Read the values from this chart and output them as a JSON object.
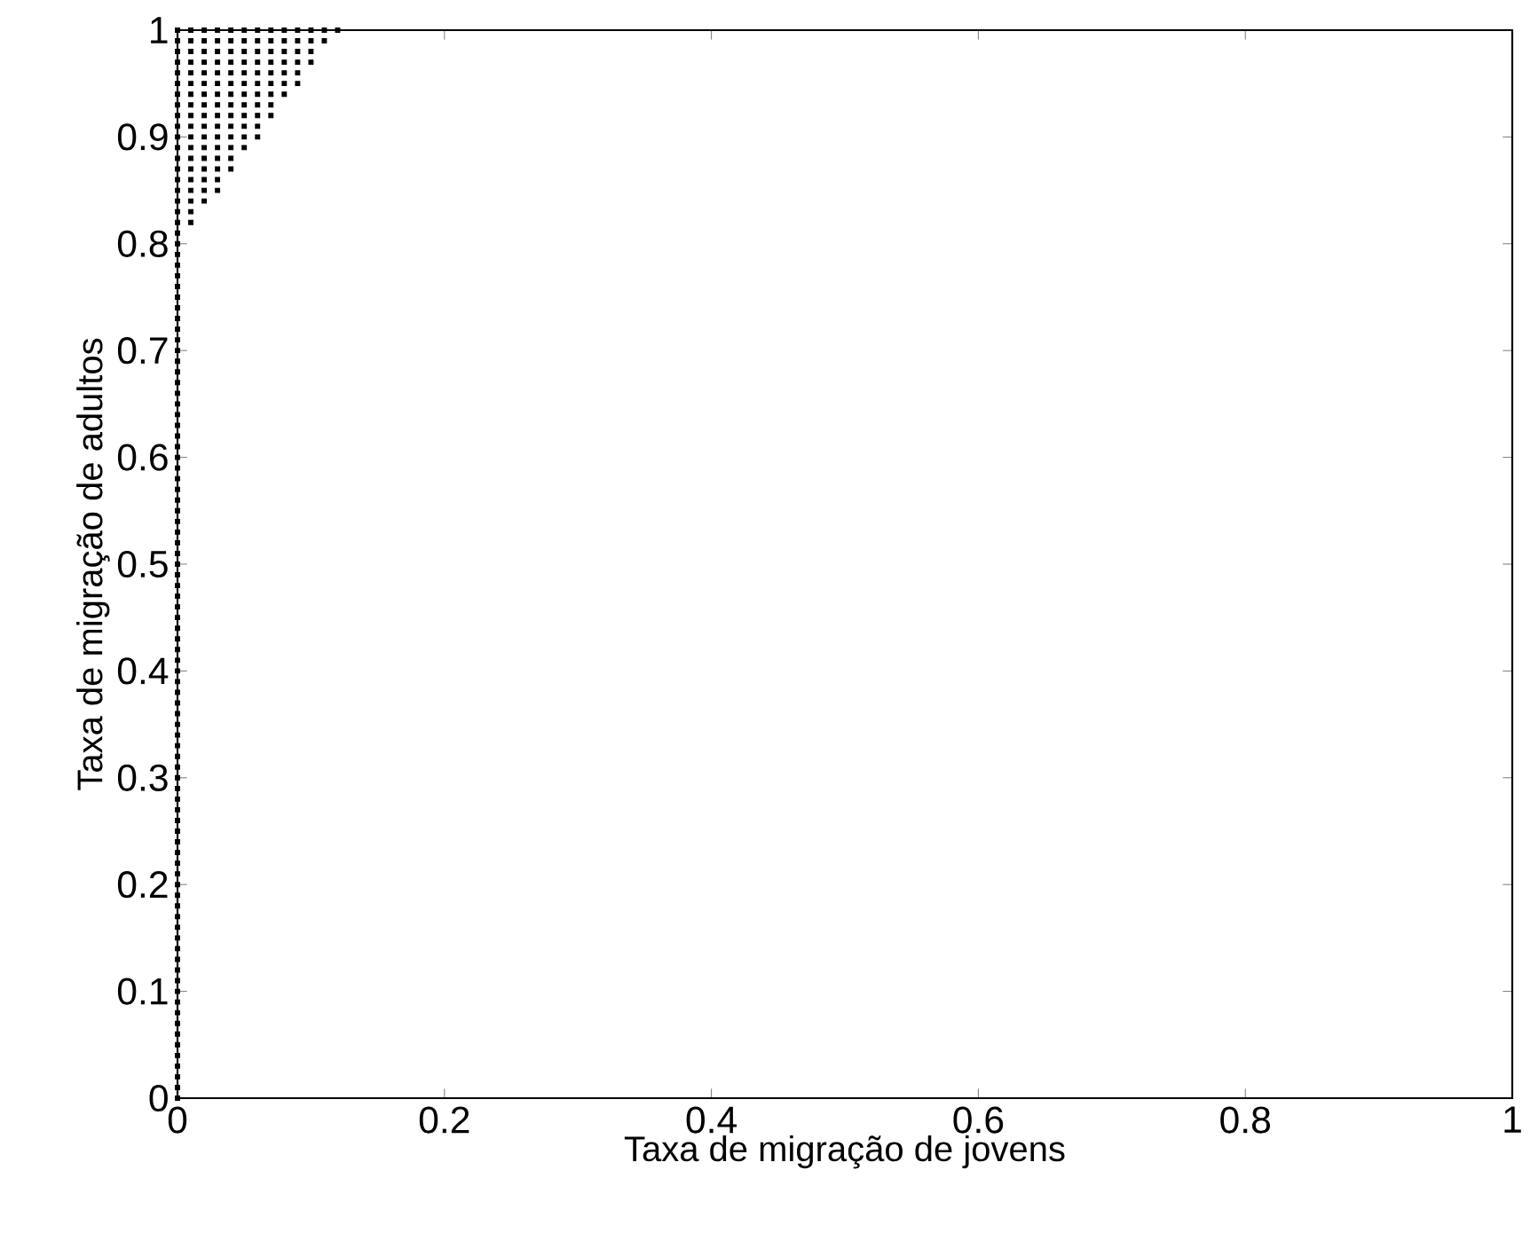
{
  "chart_data": {
    "type": "scatter",
    "xlabel": "Taxa de migração de jovens",
    "ylabel": "Taxa de migração de adultos",
    "xlim": [
      0,
      1
    ],
    "ylim": [
      0,
      1
    ],
    "xticks": [
      0,
      0.2,
      0.4,
      0.6,
      0.8,
      1
    ],
    "yticks": [
      0,
      0.1,
      0.2,
      0.3,
      0.4,
      0.5,
      0.6,
      0.7,
      0.8,
      0.9,
      1
    ],
    "marker": "square",
    "series": [
      {
        "color": "#000000",
        "x": [
          0,
          0,
          0,
          0,
          0,
          0,
          0,
          0,
          0,
          0,
          0,
          0,
          0,
          0,
          0,
          0,
          0,
          0,
          0,
          0,
          0,
          0,
          0,
          0,
          0,
          0,
          0,
          0,
          0,
          0,
          0,
          0,
          0,
          0,
          0,
          0,
          0,
          0,
          0,
          0,
          0,
          0,
          0,
          0,
          0,
          0,
          0,
          0,
          0,
          0,
          0,
          0,
          0,
          0,
          0,
          0,
          0,
          0,
          0,
          0,
          0,
          0,
          0,
          0,
          0,
          0,
          0,
          0,
          0,
          0,
          0,
          0,
          0,
          0,
          0,
          0,
          0,
          0,
          0,
          0,
          0,
          0,
          0,
          0,
          0,
          0,
          0,
          0,
          0,
          0,
          0,
          0,
          0,
          0,
          0,
          0,
          0,
          0,
          0,
          0,
          0
        ],
        "values": [
          0,
          0.01,
          0.02,
          0.03,
          0.04,
          0.05,
          0.06,
          0.07,
          0.08,
          0.09,
          0.1,
          0.11,
          0.12,
          0.13,
          0.14,
          0.15,
          0.16,
          0.17,
          0.18,
          0.19,
          0.2,
          0.21,
          0.22,
          0.23,
          0.24,
          0.25,
          0.26,
          0.27,
          0.28,
          0.29,
          0.3,
          0.31,
          0.32,
          0.33,
          0.34,
          0.35,
          0.36,
          0.37,
          0.38,
          0.39,
          0.4,
          0.41,
          0.42,
          0.43,
          0.44,
          0.45,
          0.46,
          0.47,
          0.48,
          0.49,
          0.5,
          0.51,
          0.52,
          0.53,
          0.54,
          0.55,
          0.56,
          0.57,
          0.58,
          0.59,
          0.6,
          0.61,
          0.62,
          0.63,
          0.64,
          0.65,
          0.66,
          0.67,
          0.68,
          0.69,
          0.7,
          0.71,
          0.72,
          0.73,
          0.74,
          0.75,
          0.76,
          0.77,
          0.78,
          0.79,
          0.8,
          0.81,
          0.82,
          0.83,
          0.84,
          0.85,
          0.86,
          0.87,
          0.88,
          0.89,
          0.9,
          0.91,
          0.92,
          0.93,
          0.94,
          0.95,
          0.96,
          0.97,
          0.98,
          0.99,
          1
        ]
      },
      {
        "color": "#000000",
        "x": [
          0.01,
          0.01,
          0.01,
          0.02,
          0.01,
          0.02,
          0.03,
          0.01,
          0.02,
          0.03,
          0.01,
          0.02,
          0.03,
          0.04,
          0.01,
          0.02,
          0.03,
          0.04,
          0.01,
          0.02,
          0.03,
          0.04,
          0.05,
          0.01,
          0.02,
          0.03,
          0.04,
          0.05,
          0.06,
          0.01,
          0.02,
          0.03,
          0.04,
          0.05,
          0.06,
          0.01,
          0.02,
          0.03,
          0.04,
          0.05,
          0.06,
          0.07,
          0.01,
          0.02,
          0.03,
          0.04,
          0.05,
          0.06,
          0.07,
          0.01,
          0.02,
          0.03,
          0.04,
          0.05,
          0.06,
          0.07,
          0.08,
          0.01,
          0.02,
          0.03,
          0.04,
          0.05,
          0.06,
          0.07,
          0.08,
          0.09,
          0.01,
          0.02,
          0.03,
          0.04,
          0.05,
          0.06,
          0.07,
          0.08,
          0.09,
          0.01,
          0.02,
          0.03,
          0.04,
          0.05,
          0.06,
          0.07,
          0.08,
          0.09,
          0.1,
          0.01,
          0.02,
          0.03,
          0.04,
          0.05,
          0.06,
          0.07,
          0.08,
          0.09,
          0.1,
          0.01,
          0.02,
          0.03,
          0.04,
          0.05,
          0.06,
          0.07,
          0.08,
          0.09,
          0.1,
          0.11,
          0.01,
          0.02,
          0.03,
          0.04,
          0.05,
          0.06,
          0.07,
          0.08,
          0.09,
          0.1,
          0.11,
          0.12
        ],
        "values": [
          0.82,
          0.83,
          0.84,
          0.84,
          0.85,
          0.85,
          0.85,
          0.86,
          0.86,
          0.86,
          0.87,
          0.87,
          0.87,
          0.87,
          0.88,
          0.88,
          0.88,
          0.88,
          0.89,
          0.89,
          0.89,
          0.89,
          0.89,
          0.9,
          0.9,
          0.9,
          0.9,
          0.9,
          0.9,
          0.91,
          0.91,
          0.91,
          0.91,
          0.91,
          0.91,
          0.92,
          0.92,
          0.92,
          0.92,
          0.92,
          0.92,
          0.92,
          0.93,
          0.93,
          0.93,
          0.93,
          0.93,
          0.93,
          0.93,
          0.94,
          0.94,
          0.94,
          0.94,
          0.94,
          0.94,
          0.94,
          0.94,
          0.95,
          0.95,
          0.95,
          0.95,
          0.95,
          0.95,
          0.95,
          0.95,
          0.95,
          0.96,
          0.96,
          0.96,
          0.96,
          0.96,
          0.96,
          0.96,
          0.96,
          0.96,
          0.97,
          0.97,
          0.97,
          0.97,
          0.97,
          0.97,
          0.97,
          0.97,
          0.97,
          0.97,
          0.98,
          0.98,
          0.98,
          0.98,
          0.98,
          0.98,
          0.98,
          0.98,
          0.98,
          0.98,
          0.99,
          0.99,
          0.99,
          0.99,
          0.99,
          0.99,
          0.99,
          0.99,
          0.99,
          0.99,
          0.99,
          1,
          1,
          1,
          1,
          1,
          1,
          1,
          1,
          1,
          1,
          1,
          1
        ]
      }
    ]
  }
}
